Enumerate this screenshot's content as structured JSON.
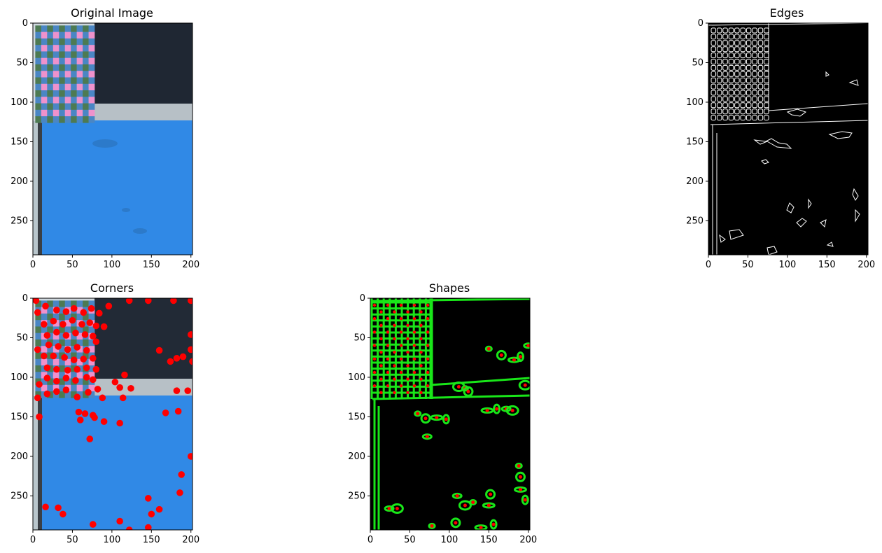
{
  "colors": {
    "frame": "#000000",
    "checker_pink": "#ee92cc",
    "checker_green": "#4d7a52",
    "checker_blue": "#4a86c4",
    "dark_panel": "#222a36",
    "stripe": "#b7c0c6",
    "blue_floor": "#3089e6",
    "edges_bg": "#000000",
    "edges_line": "#ffffff",
    "shape_line": "#19e619",
    "corner": "#ff0000"
  },
  "chart_data": [
    {
      "type": "image",
      "title": "Original Image",
      "xlim": [
        0,
        202
      ],
      "ylim": [
        293,
        0
      ],
      "xticks": [
        0,
        50,
        100,
        150,
        200
      ],
      "yticks": [
        0,
        50,
        100,
        150,
        200,
        250
      ],
      "checkerboard": {
        "x": [
          3,
          78
        ],
        "y": [
          3,
          126
        ],
        "cols": 10,
        "rows": 15
      }
    },
    {
      "type": "image",
      "title": "Edges",
      "xlim": [
        0,
        202
      ],
      "ylim": [
        293,
        0
      ],
      "xticks": [
        0,
        50,
        100,
        150,
        200
      ],
      "yticks": [
        0,
        50,
        100,
        150,
        200,
        250
      ]
    },
    {
      "type": "scatter",
      "title": "Corners",
      "xlim": [
        0,
        202
      ],
      "ylim": [
        293,
        0
      ],
      "xticks": [
        0,
        50,
        100,
        150,
        200
      ],
      "yticks": [
        0,
        50,
        100,
        150,
        200,
        250
      ],
      "points": [
        [
          4,
          3
        ],
        [
          16,
          10
        ],
        [
          6,
          18
        ],
        [
          30,
          15
        ],
        [
          42,
          17
        ],
        [
          52,
          13
        ],
        [
          64,
          18
        ],
        [
          74,
          13
        ],
        [
          84,
          19
        ],
        [
          96,
          10
        ],
        [
          122,
          3
        ],
        [
          146,
          3
        ],
        [
          178,
          3
        ],
        [
          200,
          3
        ],
        [
          14,
          33
        ],
        [
          26,
          29
        ],
        [
          38,
          33
        ],
        [
          50,
          28
        ],
        [
          62,
          33
        ],
        [
          72,
          31
        ],
        [
          80,
          35
        ],
        [
          90,
          36
        ],
        [
          18,
          47
        ],
        [
          30,
          43
        ],
        [
          42,
          47
        ],
        [
          54,
          44
        ],
        [
          66,
          46
        ],
        [
          76,
          48
        ],
        [
          6,
          65
        ],
        [
          20,
          59
        ],
        [
          32,
          61
        ],
        [
          44,
          65
        ],
        [
          56,
          62
        ],
        [
          68,
          66
        ],
        [
          80,
          55
        ],
        [
          200,
          46
        ],
        [
          14,
          73
        ],
        [
          26,
          73
        ],
        [
          40,
          75
        ],
        [
          52,
          78
        ],
        [
          64,
          77
        ],
        [
          76,
          76
        ],
        [
          18,
          88
        ],
        [
          30,
          90
        ],
        [
          44,
          91
        ],
        [
          56,
          90
        ],
        [
          68,
          88
        ],
        [
          80,
          90
        ],
        [
          160,
          66
        ],
        [
          174,
          80
        ],
        [
          182,
          76
        ],
        [
          190,
          74
        ],
        [
          200,
          65
        ],
        [
          202,
          80
        ],
        [
          8,
          109
        ],
        [
          18,
          101
        ],
        [
          30,
          105
        ],
        [
          42,
          101
        ],
        [
          54,
          104
        ],
        [
          68,
          100
        ],
        [
          76,
          103
        ],
        [
          104,
          106
        ],
        [
          116,
          97
        ],
        [
          6,
          126
        ],
        [
          18,
          121
        ],
        [
          30,
          118
        ],
        [
          42,
          116
        ],
        [
          56,
          125
        ],
        [
          70,
          119
        ],
        [
          82,
          115
        ],
        [
          88,
          126
        ],
        [
          110,
          113
        ],
        [
          114,
          126
        ],
        [
          124,
          114
        ],
        [
          8,
          150
        ],
        [
          58,
          144
        ],
        [
          60,
          154
        ],
        [
          66,
          146
        ],
        [
          76,
          148
        ],
        [
          78,
          151
        ],
        [
          90,
          156
        ],
        [
          110,
          158
        ],
        [
          168,
          145
        ],
        [
          182,
          117
        ],
        [
          184,
          143
        ],
        [
          196,
          117
        ],
        [
          72,
          178
        ],
        [
          200,
          200
        ],
        [
          188,
          223
        ],
        [
          186,
          246
        ],
        [
          16,
          264
        ],
        [
          32,
          265
        ],
        [
          38,
          273
        ],
        [
          76,
          286
        ],
        [
          110,
          282
        ],
        [
          122,
          293
        ],
        [
          146,
          253
        ],
        [
          146,
          290
        ],
        [
          150,
          273
        ],
        [
          160,
          267
        ]
      ]
    },
    {
      "type": "contours",
      "title": "Shapes",
      "xlim": [
        0,
        202
      ],
      "ylim": [
        293,
        0
      ],
      "xticks": [
        0,
        50,
        100,
        150,
        200
      ],
      "yticks": [
        0,
        50,
        100,
        150,
        200,
        250
      ],
      "blob_centers": [
        [
          60,
          146
        ],
        [
          70,
          152
        ],
        [
          84,
          151
        ],
        [
          96,
          153
        ],
        [
          72,
          175
        ],
        [
          112,
          112
        ],
        [
          120,
          114
        ],
        [
          124,
          118
        ],
        [
          148,
          142
        ],
        [
          160,
          140
        ],
        [
          172,
          140
        ],
        [
          180,
          142
        ],
        [
          150,
          64
        ],
        [
          166,
          72
        ],
        [
          182,
          78
        ],
        [
          190,
          74
        ],
        [
          200,
          60
        ],
        [
          196,
          110
        ],
        [
          188,
          212
        ],
        [
          190,
          226
        ],
        [
          190,
          242
        ],
        [
          196,
          255
        ],
        [
          110,
          250
        ],
        [
          120,
          262
        ],
        [
          130,
          258
        ],
        [
          152,
          248
        ],
        [
          150,
          262
        ],
        [
          156,
          286
        ],
        [
          24,
          266
        ],
        [
          34,
          266
        ],
        [
          78,
          288
        ],
        [
          108,
          284
        ],
        [
          140,
          290
        ]
      ]
    }
  ]
}
